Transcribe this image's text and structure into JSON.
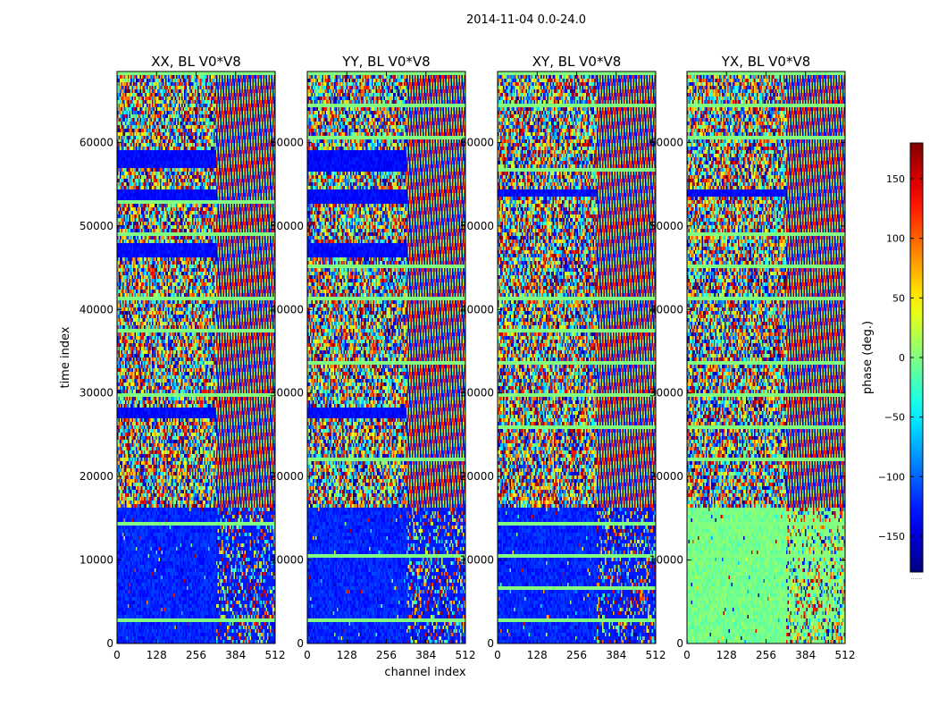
{
  "figure_title": "2014-11-04 0.0-24.0",
  "chart_data": {
    "type": "heatmap",
    "title": "2014-11-04 0.0-24.0",
    "xlabel": "channel index",
    "ylabel": "time index",
    "xlim": [
      0,
      512
    ],
    "ylim": [
      0,
      68500
    ],
    "xticks": [
      0,
      128,
      256,
      384,
      512
    ],
    "yticks": [
      0,
      10000,
      20000,
      30000,
      40000,
      50000,
      60000
    ],
    "colorscale": "jet",
    "colorbar": {
      "label": "phase (deg.)",
      "range": [
        -180,
        180
      ],
      "ticks": [
        150,
        100,
        50,
        0,
        -50,
        -100,
        -150
      ],
      "tick_labels": [
        "150",
        "100",
        "50",
        "0",
        "−50",
        "−100",
        "−150"
      ],
      "footnote": "......"
    },
    "panels": [
      {
        "name": "XX, BL V0*V8",
        "low_band_phase": "blue",
        "flagged_bands": [
          [
            26800,
            28200
          ],
          [
            46500,
            47900
          ],
          [
            52800,
            54500
          ],
          [
            57000,
            59300
          ]
        ]
      },
      {
        "name": "YY, BL V0*V8",
        "low_band_phase": "blue",
        "flagged_bands": [
          [
            26800,
            28200
          ],
          [
            46500,
            47900
          ],
          [
            52800,
            54500
          ],
          [
            56500,
            59300
          ]
        ]
      },
      {
        "name": "XY, BL V0*V8",
        "low_band_phase": "blue",
        "flagged_bands": [
          [
            53500,
            54500
          ]
        ]
      },
      {
        "name": "YX, BL V0*V8",
        "low_band_phase": "green",
        "flagged_bands": [
          [
            53500,
            54500
          ]
        ]
      }
    ],
    "transition_time_index": 16000,
    "transition_channel": 320
  }
}
